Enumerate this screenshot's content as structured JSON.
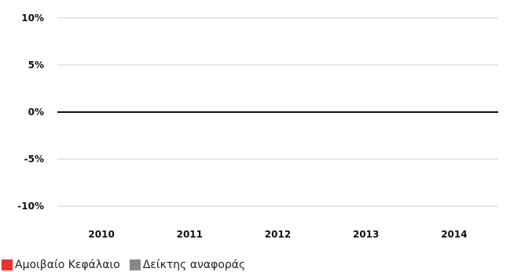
{
  "chart_data": {
    "type": "bar",
    "categories": [
      "2010",
      "2011",
      "2012",
      "2013",
      "2014"
    ],
    "series": [
      {
        "name": "Αμοιβαίο Κεφάλαιο",
        "color": "#e8322c",
        "values": [
          0,
          0,
          0,
          0,
          0
        ]
      },
      {
        "name": "Δείκτης αναφοράς",
        "color": "#888888",
        "values": [
          0,
          0,
          0,
          0,
          0
        ]
      }
    ],
    "y_ticks": [
      10,
      5,
      0,
      -5,
      -10
    ],
    "y_tick_labels": [
      "10%",
      "5%",
      "0%",
      "-5%",
      "-10%"
    ],
    "ylim": [
      -10,
      10
    ],
    "grid": true,
    "legend_position": "bottom-left"
  }
}
